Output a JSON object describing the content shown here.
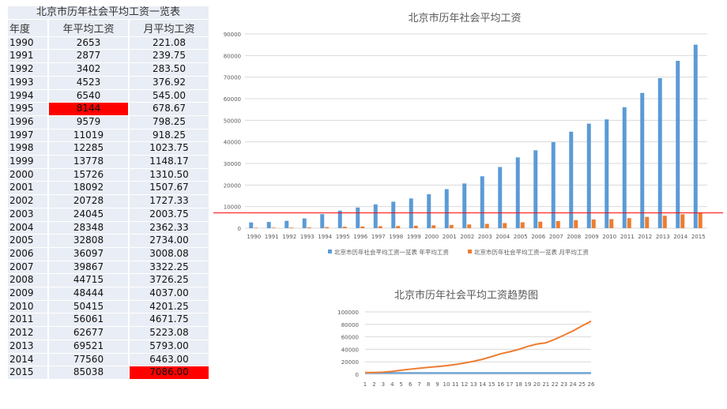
{
  "table": {
    "title": "北京市历年社会平均工资一览表",
    "headers": [
      "年度",
      "年平均工资",
      "月平均工资"
    ],
    "rows": [
      [
        "1990",
        "2653",
        "221.08"
      ],
      [
        "1991",
        "2877",
        "239.75"
      ],
      [
        "1992",
        "3402",
        "283.50"
      ],
      [
        "1993",
        "4523",
        "376.92"
      ],
      [
        "1994",
        "6540",
        "545.00"
      ],
      [
        "1995",
        "8144",
        "678.67"
      ],
      [
        "1996",
        "9579",
        "798.25"
      ],
      [
        "1997",
        "11019",
        "918.25"
      ],
      [
        "1998",
        "12285",
        "1023.75"
      ],
      [
        "1999",
        "13778",
        "1148.17"
      ],
      [
        "2000",
        "15726",
        "1310.50"
      ],
      [
        "2001",
        "18092",
        "1507.67"
      ],
      [
        "2002",
        "20728",
        "1727.33"
      ],
      [
        "2003",
        "24045",
        "2003.75"
      ],
      [
        "2004",
        "28348",
        "2362.33"
      ],
      [
        "2005",
        "32808",
        "2734.00"
      ],
      [
        "2006",
        "36097",
        "3008.08"
      ],
      [
        "2007",
        "39867",
        "3322.25"
      ],
      [
        "2008",
        "44715",
        "3726.25"
      ],
      [
        "2009",
        "48444",
        "4037.00"
      ],
      [
        "2010",
        "50415",
        "4201.25"
      ],
      [
        "2011",
        "56061",
        "4671.75"
      ],
      [
        "2012",
        "62677",
        "5223.08"
      ],
      [
        "2013",
        "69521",
        "5793.00"
      ],
      [
        "2014",
        "77560",
        "6463.00"
      ],
      [
        "2015",
        "85038",
        "7086.00"
      ]
    ],
    "highlight_color": "#ff0000",
    "highlighted_cells": [
      {
        "year": "1995",
        "column": "年平均工资"
      },
      {
        "year": "2015",
        "column": "月平均工资"
      }
    ]
  },
  "chart_data": [
    {
      "type": "bar",
      "title": "北京市历年社会平均工资",
      "categories": [
        "1990",
        "1991",
        "1992",
        "1993",
        "1994",
        "1995",
        "1996",
        "1997",
        "1998",
        "1999",
        "2000",
        "2001",
        "2002",
        "2003",
        "2004",
        "2005",
        "2006",
        "2007",
        "2008",
        "2009",
        "2010",
        "2011",
        "2012",
        "2013",
        "2014",
        "2015"
      ],
      "series": [
        {
          "name": "北京市历年社会平均工资一览表 年平均工资",
          "color": "#5b9bd5",
          "values": [
            2653,
            2877,
            3402,
            4523,
            6540,
            8144,
            9579,
            11019,
            12285,
            13778,
            15726,
            18092,
            20728,
            24045,
            28348,
            32808,
            36097,
            39867,
            44715,
            48444,
            50415,
            56061,
            62677,
            69521,
            77560,
            85038
          ]
        },
        {
          "name": "北京市历年社会平均工资一览表 月平均工资",
          "color": "#ed7d31",
          "values": [
            221.08,
            239.75,
            283.5,
            376.92,
            545,
            678.67,
            798.25,
            918.25,
            1023.75,
            1148.17,
            1310.5,
            1507.67,
            1727.33,
            2003.75,
            2362.33,
            2734,
            3008.08,
            3322.25,
            3726.25,
            4037,
            4201.25,
            4671.75,
            5223.08,
            5793,
            6463,
            7086
          ]
        }
      ],
      "yticks": [
        "0",
        "10000",
        "20000",
        "30000",
        "40000",
        "50000",
        "60000",
        "70000",
        "80000",
        "90000"
      ],
      "ylim": [
        0,
        90000
      ],
      "grid": true,
      "legend": "bottom",
      "reference_line": {
        "value": 7086,
        "color": "#ff0000"
      }
    },
    {
      "type": "line",
      "title": "北京市历年社会平均工资趋势图",
      "categories": [
        "1",
        "2",
        "3",
        "4",
        "5",
        "6",
        "7",
        "8",
        "9",
        "10",
        "11",
        "12",
        "13",
        "14",
        "15",
        "16",
        "17",
        "18",
        "19",
        "20",
        "21",
        "22",
        "23",
        "24",
        "25",
        "26"
      ],
      "series": [
        {
          "color": "#5b9bd5",
          "values": [
            1990,
            1991,
            1992,
            1993,
            1994,
            1995,
            1996,
            1997,
            1998,
            1999,
            2000,
            2001,
            2002,
            2003,
            2004,
            2005,
            2006,
            2007,
            2008,
            2009,
            2010,
            2011,
            2012,
            2013,
            2014,
            2015
          ]
        },
        {
          "color": "#ed7d31",
          "values": [
            2653,
            2877,
            3402,
            4523,
            6540,
            8144,
            9579,
            11019,
            12285,
            13778,
            15726,
            18092,
            20728,
            24045,
            28348,
            32808,
            36097,
            39867,
            44715,
            48444,
            50415,
            56061,
            62677,
            69521,
            77560,
            85038
          ]
        }
      ],
      "yticks": [
        "0",
        "20000",
        "40000",
        "60000",
        "80000",
        "100000"
      ],
      "ylim": [
        0,
        100000
      ],
      "grid": true
    }
  ]
}
